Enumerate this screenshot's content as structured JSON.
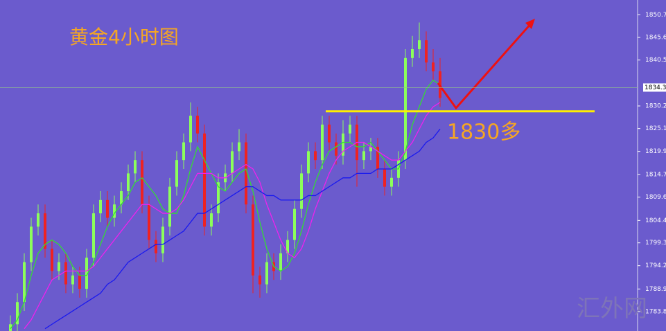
{
  "chart_data": {
    "type": "candlestick",
    "title": "黄金4小时图",
    "annotation": "1830多",
    "watermark": "汇外网",
    "up_color": "#8cff5a",
    "down_color": "#ee2222",
    "open": [
      1779,
      1781,
      1786,
      1795,
      1803,
      1806,
      1798,
      1793,
      1795,
      1790,
      1792,
      1789,
      1796,
      1806,
      1809,
      1805,
      1808,
      1811,
      1815,
      1818,
      1808,
      1800,
      1797,
      1803,
      1812,
      1818,
      1822,
      1828,
      1824,
      1803,
      1806,
      1813,
      1815,
      1820,
      1822,
      1808,
      1792,
      1790,
      1795,
      1793,
      1797,
      1800,
      1807,
      1815,
      1820,
      1818,
      1826,
      1822,
      1819,
      1824,
      1826,
      1818,
      1820,
      1821,
      1816,
      1812,
      1814,
      1818,
      1841,
      1843,
      1845,
      1840,
      1838
    ],
    "high": [
      1783,
      1788,
      1797,
      1805,
      1808,
      1808,
      1800,
      1797,
      1797,
      1794,
      1794,
      1798,
      1808,
      1811,
      1811,
      1810,
      1813,
      1817,
      1820,
      1820,
      1810,
      1802,
      1805,
      1814,
      1820,
      1824,
      1831,
      1830,
      1826,
      1808,
      1815,
      1817,
      1822,
      1825,
      1824,
      1810,
      1794,
      1797,
      1797,
      1799,
      1802,
      1809,
      1817,
      1822,
      1822,
      1828,
      1828,
      1824,
      1827,
      1828,
      1828,
      1822,
      1823,
      1823,
      1818,
      1816,
      1820,
      1843,
      1846,
      1849,
      1847,
      1843,
      1841
    ],
    "low": [
      1777,
      1779,
      1784,
      1793,
      1801,
      1796,
      1791,
      1791,
      1788,
      1788,
      1787,
      1787,
      1794,
      1804,
      1803,
      1803,
      1806,
      1809,
      1813,
      1806,
      1798,
      1795,
      1795,
      1801,
      1810,
      1816,
      1820,
      1822,
      1801,
      1801,
      1804,
      1811,
      1813,
      1818,
      1806,
      1788,
      1787,
      1788,
      1791,
      1791,
      1795,
      1798,
      1805,
      1813,
      1816,
      1816,
      1820,
      1817,
      1817,
      1822,
      1812,
      1816,
      1818,
      1814,
      1810,
      1810,
      1812,
      1816,
      1839,
      1841,
      1838,
      1836,
      1830
    ],
    "close": [
      1781,
      1786,
      1795,
      1803,
      1806,
      1798,
      1793,
      1795,
      1790,
      1792,
      1789,
      1796,
      1806,
      1809,
      1805,
      1808,
      1811,
      1815,
      1818,
      1808,
      1800,
      1797,
      1803,
      1812,
      1818,
      1822,
      1828,
      1824,
      1803,
      1806,
      1813,
      1815,
      1820,
      1822,
      1808,
      1792,
      1790,
      1795,
      1793,
      1797,
      1800,
      1807,
      1815,
      1820,
      1818,
      1826,
      1822,
      1819,
      1824,
      1826,
      1818,
      1820,
      1821,
      1816,
      1812,
      1814,
      1818,
      1841,
      1843,
      1845,
      1840,
      1838,
      1832
    ],
    "moving_averages": [
      {
        "color": "#33dd33",
        "values": [
          1780,
          1782,
          1786,
          1792,
          1797,
          1799,
          1800,
          1799,
          1797,
          1794,
          1792,
          1792,
          1795,
          1799,
          1803,
          1806,
          1808,
          1810,
          1813,
          1814,
          1812,
          1810,
          1807,
          1806,
          1806,
          1810,
          1816,
          1821,
          1818,
          1815,
          1812,
          1811,
          1813,
          1815,
          1816,
          1811,
          1804,
          1798,
          1794,
          1793,
          1794,
          1797,
          1802,
          1808,
          1813,
          1817,
          1820,
          1821,
          1822,
          1822,
          1821,
          1821,
          1822,
          1820,
          1818,
          1816,
          1816,
          1820,
          1826,
          1830,
          1834,
          1836,
          1835
        ]
      },
      {
        "color": "#ee22ee",
        "values": [
          null,
          null,
          1780,
          1782,
          1785,
          1788,
          1791,
          1792,
          1793,
          1793,
          1793,
          1793,
          1794,
          1796,
          1798,
          1800,
          1802,
          1804,
          1806,
          1808,
          1808,
          1807,
          1806,
          1806,
          1807,
          1809,
          1812,
          1815,
          1815,
          1815,
          1814,
          1814,
          1815,
          1816,
          1817,
          1816,
          1813,
          1808,
          1804,
          1800,
          1797,
          1796,
          1798,
          1802,
          1807,
          1811,
          1815,
          1818,
          1820,
          1821,
          1822,
          1822,
          1821,
          1820,
          1819,
          1818,
          1818,
          1820,
          1822,
          1825,
          1828,
          1830,
          1831
        ]
      },
      {
        "color": "#1a1aee",
        "values": [
          null,
          null,
          null,
          null,
          null,
          1780,
          1781,
          1782,
          1783,
          1784,
          1785,
          1786,
          1787,
          1788,
          1790,
          1791,
          1793,
          1795,
          1796,
          1797,
          1798,
          1799,
          1799,
          1800,
          1801,
          1802,
          1804,
          1806,
          1806,
          1807,
          1808,
          1809,
          1810,
          1811,
          1812,
          1812,
          1811,
          1810,
          1810,
          1809,
          1809,
          1809,
          1809,
          1810,
          1810,
          1811,
          1812,
          1813,
          1814,
          1814,
          1815,
          1815,
          1815,
          1816,
          1816,
          1816,
          1817,
          1818,
          1819,
          1820,
          1822,
          1823,
          1825
        ]
      }
    ],
    "ylim": [
      1779.48,
      1854.08
    ],
    "yticks": [
      1850.75,
      1845.65,
      1840.55,
      {
        "value": 1830.2,
        "label": "1830.20"
      },
      {
        "value": 1825.1,
        "label": "1825.10"
      },
      1819.95,
      1814.75,
      1809.65,
      {
        "value": 1804.4,
        "label": "1804.40"
      },
      1799.35,
      {
        "value": 1794.2,
        "label": "1794.20"
      },
      1788.95,
      1783.85
    ],
    "last_price": 1834.35,
    "support_level": 1829
  }
}
